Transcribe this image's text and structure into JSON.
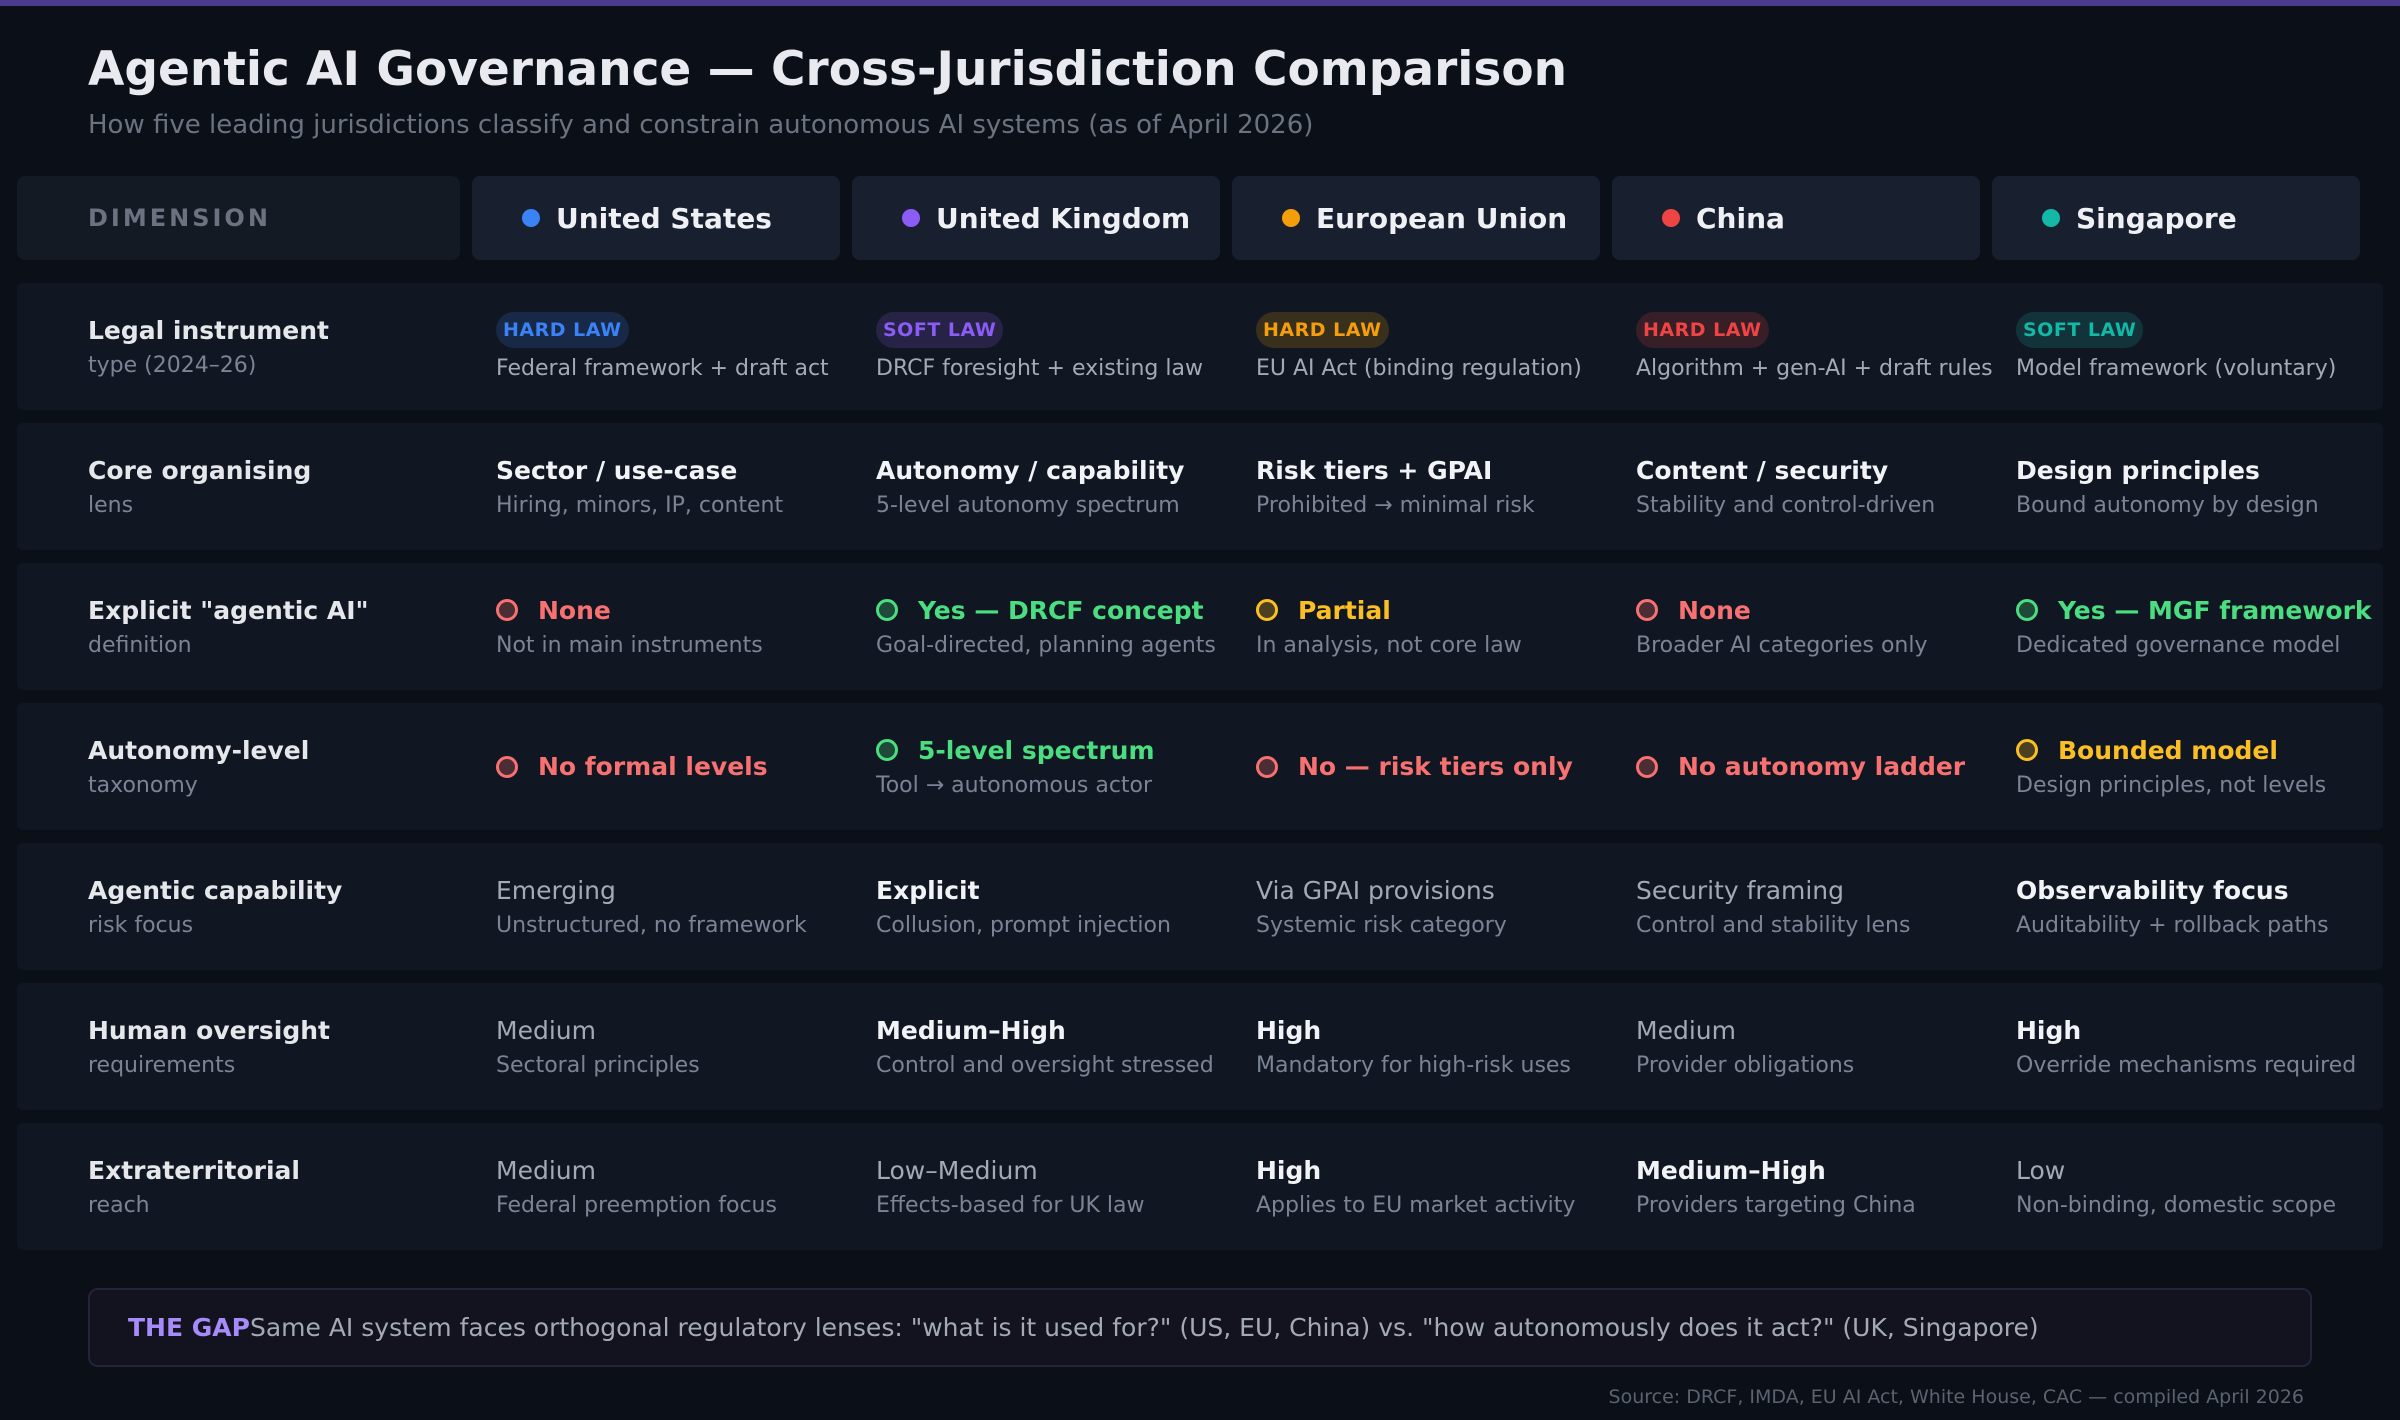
{
  "header": {
    "title": "Agentic AI Governance — Cross-Jurisdiction Comparison",
    "subtitle": "How five leading jurisdictions classify and constrain autonomous AI systems (as of April 2026)"
  },
  "table": {
    "dimension_header": "DIMENSION",
    "columns": [
      {
        "name": "United States",
        "color": "#3b82f6"
      },
      {
        "name": "United Kingdom",
        "color": "#8b5cf6"
      },
      {
        "name": "European Union",
        "color": "#f59e0b"
      },
      {
        "name": "China",
        "color": "#ef4444"
      },
      {
        "name": "Singapore",
        "color": "#14b8a6"
      }
    ],
    "rows": [
      {
        "label": "Legal instrument",
        "sublabel": "type (2024–26)",
        "cells": [
          {
            "badge": "HARD LAW",
            "sub": "Federal framework + draft act"
          },
          {
            "badge": "SOFT LAW",
            "sub": "DRCF foresight + existing law"
          },
          {
            "badge": "HARD LAW",
            "sub": "EU AI Act (binding regulation)"
          },
          {
            "badge": "HARD LAW",
            "sub": "Algorithm + gen-AI + draft rules"
          },
          {
            "badge": "SOFT LAW",
            "sub": "Model framework (voluntary)"
          }
        ]
      },
      {
        "label": "Core organising",
        "sublabel": "lens",
        "cells": [
          {
            "main": "Sector / use-case",
            "sub": "Hiring, minors, IP, content",
            "strong": true
          },
          {
            "main": "Autonomy / capability",
            "sub": "5-level autonomy spectrum",
            "strong": true
          },
          {
            "main": "Risk tiers + GPAI",
            "sub": "Prohibited → minimal risk",
            "strong": true
          },
          {
            "main": "Content / security",
            "sub": "Stability and control-driven",
            "strong": true
          },
          {
            "main": "Design principles",
            "sub": "Bound autonomy by design",
            "strong": true
          }
        ]
      },
      {
        "label": "Explicit \"agentic AI\"",
        "sublabel": "definition",
        "cells": [
          {
            "main": "None",
            "sub": "Not in main instruments",
            "color": "#f87171",
            "strong": true
          },
          {
            "main": "Yes — DRCF concept",
            "sub": "Goal-directed, planning agents",
            "color": "#4ade80",
            "strong": true
          },
          {
            "main": "Partial",
            "sub": "In analysis, not core law",
            "color": "#fbbf24",
            "strong": true
          },
          {
            "main": "None",
            "sub": "Broader AI categories only",
            "color": "#f87171",
            "strong": true
          },
          {
            "main": "Yes — MGF framework",
            "sub": "Dedicated governance model",
            "color": "#4ade80",
            "strong": true
          }
        ]
      },
      {
        "label": "Autonomy-level",
        "sublabel": "taxonomy",
        "cells": [
          {
            "main": "No formal levels",
            "color": "#f87171",
            "strong": true
          },
          {
            "main": "5-level spectrum",
            "sub": "Tool → autonomous actor",
            "color": "#4ade80",
            "strong": true
          },
          {
            "main": "No — risk tiers only",
            "color": "#f87171",
            "strong": true
          },
          {
            "main": "No autonomy ladder",
            "color": "#f87171",
            "strong": true
          },
          {
            "main": "Bounded model",
            "sub": "Design principles, not levels",
            "color": "#fbbf24",
            "strong": true
          }
        ]
      },
      {
        "label": "Agentic capability",
        "sublabel": "risk focus",
        "cells": [
          {
            "main": "Emerging",
            "sub": "Unstructured, no framework",
            "strong": false
          },
          {
            "main": "Explicit",
            "sub": "Collusion, prompt injection",
            "strong": true
          },
          {
            "main": "Via GPAI provisions",
            "sub": "Systemic risk category",
            "strong": false
          },
          {
            "main": "Security framing",
            "sub": "Control and stability lens",
            "strong": false
          },
          {
            "main": "Observability focus",
            "sub": "Auditability + rollback paths",
            "strong": true
          }
        ]
      },
      {
        "label": "Human oversight",
        "sublabel": "requirements",
        "cells": [
          {
            "main": "Medium",
            "sub": "Sectoral principles",
            "strong": false
          },
          {
            "main": "Medium–High",
            "sub": "Control and oversight stressed",
            "strong": true
          },
          {
            "main": "High",
            "sub": "Mandatory for high-risk uses",
            "strong": true
          },
          {
            "main": "Medium",
            "sub": "Provider obligations",
            "strong": false
          },
          {
            "main": "High",
            "sub": "Override mechanisms required",
            "strong": true
          }
        ]
      },
      {
        "label": "Extraterritorial",
        "sublabel": "reach",
        "cells": [
          {
            "main": "Medium",
            "sub": "Federal preemption focus",
            "strong": false
          },
          {
            "main": "Low–Medium",
            "sub": "Effects-based for UK law",
            "strong": false
          },
          {
            "main": "High",
            "sub": "Applies to EU market activity",
            "strong": true
          },
          {
            "main": "Medium–High",
            "sub": "Providers targeting China",
            "strong": true
          },
          {
            "main": "Low",
            "sub": "Non-binding, domestic scope",
            "strong": false
          }
        ]
      }
    ]
  },
  "gap": {
    "label": "THE GAP",
    "text": "Same AI system faces orthogonal regulatory lenses: \"what is it used for?\" (US, EU, China) vs. \"how autonomously does it act?\" (UK, Singapore)"
  },
  "source": "Source: DRCF, IMDA, EU AI Act, White House, CAC — compiled April 2026"
}
